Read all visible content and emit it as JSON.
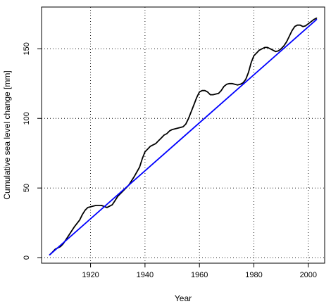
{
  "chart_data": {
    "type": "line",
    "title": "",
    "xlabel": "Year",
    "ylabel": "Cumulative sea level change [mm]",
    "xlim": [
      1902,
      2006
    ],
    "ylim": [
      -4,
      180
    ],
    "x_ticks": [
      1920,
      1940,
      1960,
      1980,
      2000
    ],
    "y_ticks": [
      0,
      50,
      100,
      150
    ],
    "grid": true,
    "legend": "none",
    "series": [
      {
        "color": "#000000",
        "x": [
          1905,
          1906,
          1907,
          1908,
          1909,
          1910,
          1912,
          1914,
          1916,
          1917,
          1918,
          1919,
          1920,
          1921,
          1922,
          1924,
          1926,
          1928,
          1929,
          1930,
          1932,
          1934,
          1936,
          1938,
          1939,
          1940,
          1941,
          1942,
          1944,
          1945,
          1946,
          1947,
          1948,
          1949,
          1950,
          1952,
          1954,
          1955,
          1956,
          1957,
          1958,
          1959,
          1960,
          1961,
          1962,
          1963,
          1964,
          1965,
          1966,
          1967,
          1968,
          1969,
          1970,
          1971,
          1972,
          1973,
          1974,
          1975,
          1976,
          1977,
          1978,
          1979,
          1980,
          1981,
          1982,
          1983,
          1984,
          1985,
          1986,
          1987,
          1988,
          1989,
          1990,
          1991,
          1992,
          1993,
          1994,
          1995,
          1996,
          1997,
          1998,
          1999,
          2000,
          2001,
          2002,
          2003
        ],
        "y": [
          2,
          4,
          6,
          7,
          8,
          10,
          16,
          22,
          27,
          31,
          34,
          36,
          36.5,
          37,
          37.5,
          37.5,
          36,
          38,
          41,
          44,
          48,
          52,
          58,
          65,
          71,
          76,
          78,
          80,
          82,
          84,
          86,
          88,
          89,
          91,
          92,
          93,
          94,
          96,
          100,
          105,
          110,
          115,
          119,
          120,
          120,
          119,
          117,
          117,
          117.5,
          118,
          120,
          123,
          124.5,
          125,
          125,
          124.5,
          124,
          124.5,
          125.5,
          128,
          133,
          140,
          145,
          147,
          149,
          150,
          151,
          151,
          150,
          149,
          148,
          148.5,
          150,
          152,
          155,
          159,
          163,
          166,
          167,
          167,
          166,
          166.5,
          168,
          169.5,
          171,
          172
        ]
      },
      {
        "color": "#0000ff",
        "x": [
          1905,
          2003
        ],
        "y": [
          2,
          171
        ]
      }
    ]
  }
}
